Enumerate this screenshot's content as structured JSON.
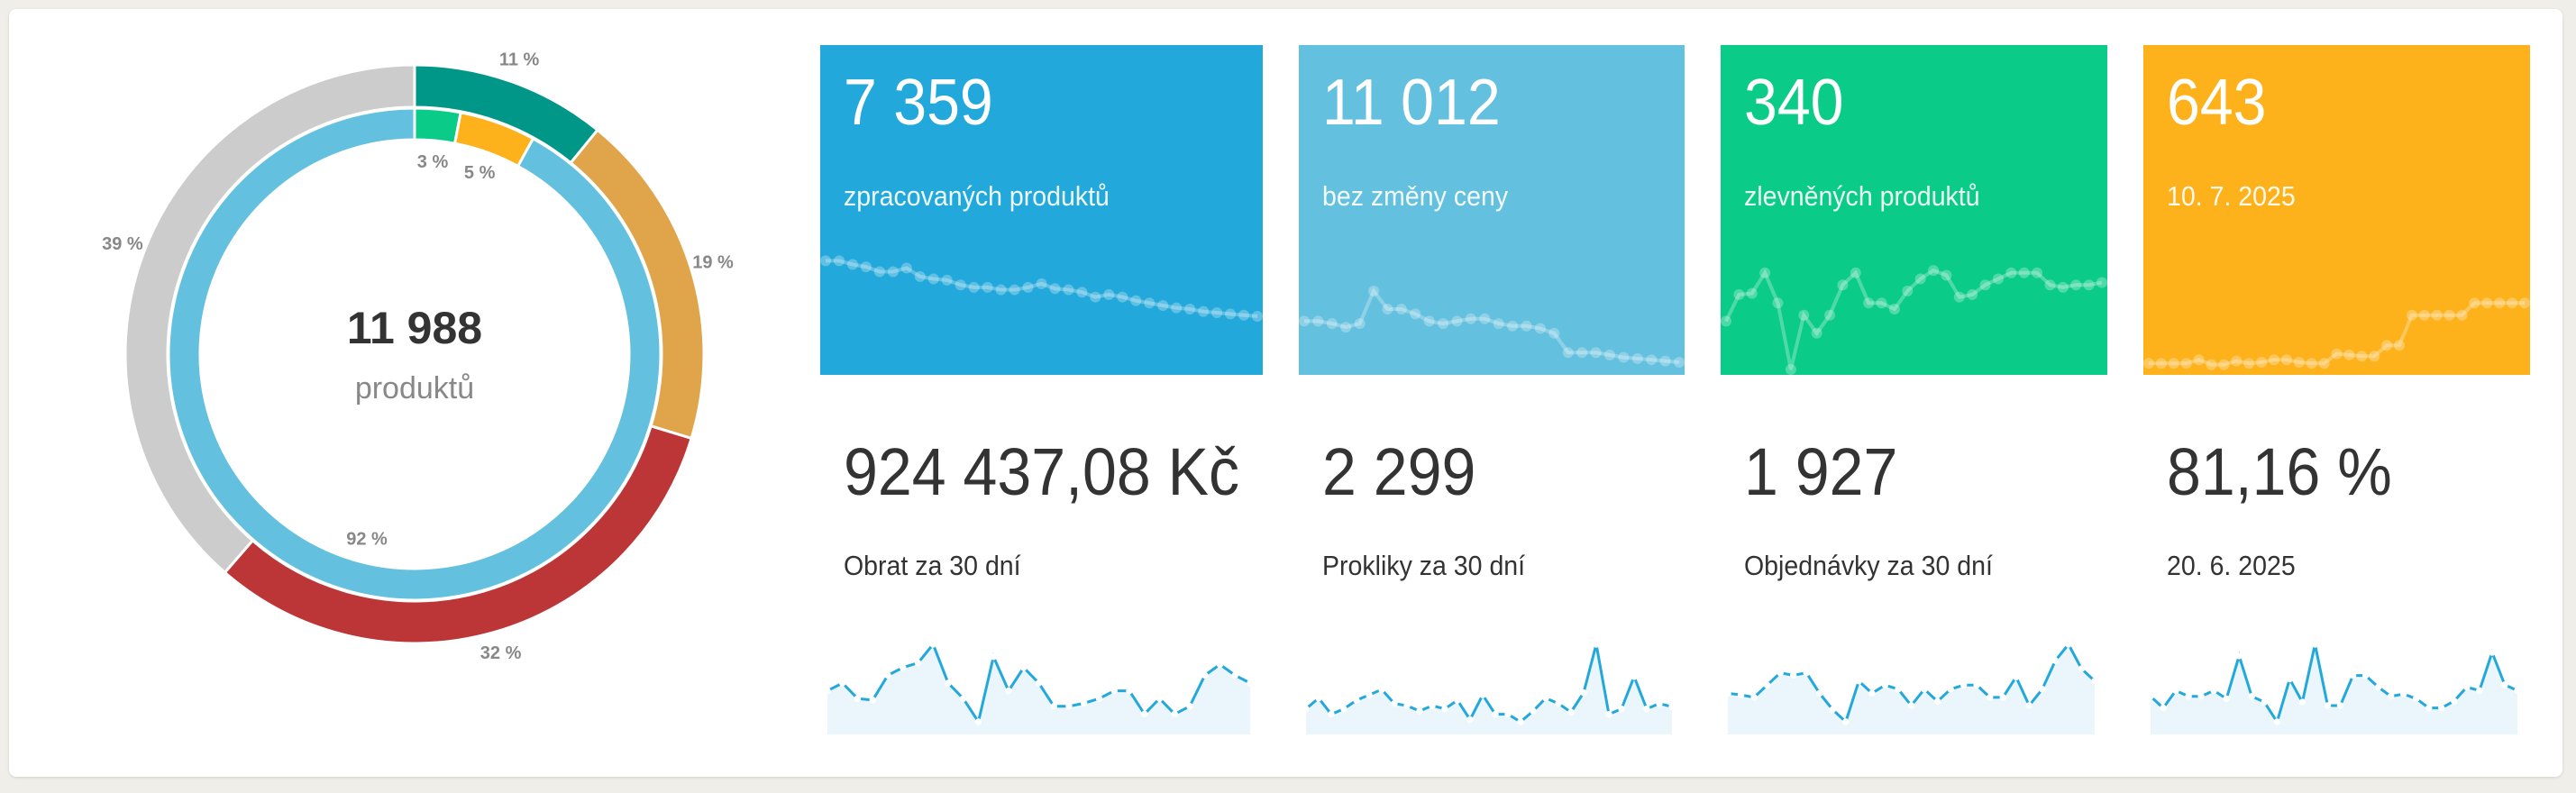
{
  "donut": {
    "total": "11 988",
    "total_label": "produktů",
    "outer": [
      {
        "label": "11 %",
        "value": 11,
        "color": "#009688"
      },
      {
        "label": "19 %",
        "value": 19,
        "color": "#E0A54A"
      },
      {
        "label": "32 %",
        "value": 32,
        "color": "#BC3638"
      },
      {
        "label": "39 %",
        "value": 39,
        "color": "#CCCCCC"
      }
    ],
    "inner": [
      {
        "label": "3 %",
        "value": 3,
        "color": "#0ACB87"
      },
      {
        "label": "5 %",
        "value": 5,
        "color": "#FDB21C"
      },
      {
        "label": "92 %",
        "value": 92,
        "color": "#63C0DE"
      }
    ]
  },
  "tiles": [
    {
      "value": "7 359",
      "label": "zpracovaných produktů",
      "color": "#22A8DA",
      "spark": [
        90,
        90,
        87,
        85,
        81,
        81,
        84,
        77,
        75,
        74,
        70,
        68,
        68,
        66,
        66,
        68,
        71,
        67,
        66,
        64,
        60,
        62,
        60,
        57,
        55,
        53,
        51,
        50,
        48,
        47,
        46,
        45,
        44
      ]
    },
    {
      "value": "11 012",
      "label": "bez změny ceny",
      "color": "#63C0DE",
      "spark": [
        40,
        40,
        38,
        35,
        38,
        65,
        50,
        50,
        46,
        40,
        38,
        40,
        42,
        42,
        38,
        36,
        36,
        34,
        30,
        14,
        14,
        14,
        12,
        10,
        9,
        8,
        7,
        6
      ]
    },
    {
      "value": "340",
      "label": "zlevněných produktů",
      "color": "#0ACB87",
      "spark": [
        40,
        62,
        63,
        80,
        55,
        0,
        45,
        30,
        45,
        70,
        80,
        55,
        55,
        50,
        65,
        75,
        82,
        78,
        60,
        62,
        70,
        75,
        80,
        80,
        80,
        70,
        68,
        70,
        70,
        72
      ]
    },
    {
      "value": "643",
      "label": "10. 7. 2025",
      "color": "#FDB21C",
      "spark": [
        5,
        5,
        5,
        5,
        8,
        4,
        4,
        7,
        5,
        6,
        8,
        8,
        6,
        5,
        5,
        13,
        12,
        11,
        11,
        20,
        20,
        45,
        45,
        45,
        45,
        45,
        55,
        55,
        55,
        55,
        55
      ]
    }
  ],
  "stats": [
    {
      "value": "924 437,08 Kč",
      "label": "Obrat za 30 dní",
      "spark": [
        40,
        45,
        35,
        34,
        50,
        55,
        58,
        70,
        45,
        35,
        20,
        62,
        40,
        55,
        45,
        30,
        30,
        32,
        35,
        40,
        40,
        25,
        35,
        25,
        30,
        50,
        57,
        50,
        45
      ]
    },
    {
      "value": "2 299",
      "label": "Prokliky za 30 dní",
      "spark": [
        30,
        40,
        25,
        30,
        38,
        43,
        48,
        35,
        33,
        28,
        33,
        30,
        38,
        20,
        43,
        25,
        25,
        18,
        28,
        40,
        35,
        27,
        45,
        90,
        25,
        30,
        60,
        30,
        35,
        32
      ]
    },
    {
      "value": "1 927",
      "label": "Objednávky za 30 dní",
      "spark": [
        40,
        38,
        35,
        50,
        65,
        62,
        65,
        40,
        20,
        5,
        55,
        40,
        50,
        45,
        25,
        45,
        30,
        45,
        50,
        50,
        35,
        35,
        60,
        25,
        45,
        80,
        100,
        70,
        55
      ]
    },
    {
      "value": "81,16 %",
      "label": "20. 6. 2025",
      "spark": [
        30,
        20,
        35,
        30,
        30,
        35,
        28,
        65,
        30,
        25,
        8,
        45,
        25,
        75,
        22,
        22,
        48,
        48,
        38,
        30,
        32,
        28,
        20,
        20,
        26,
        38,
        35,
        68,
        40,
        35
      ]
    }
  ],
  "colors": {
    "spark_line": "#23A8DB",
    "spark_fill": "#EAF6FB"
  }
}
